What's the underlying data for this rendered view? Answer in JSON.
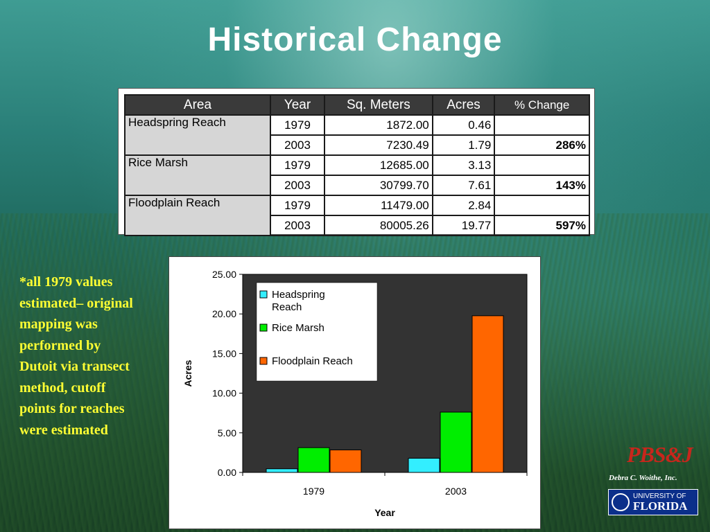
{
  "slide": {
    "title": "Historical Change",
    "note": "*all 1979 values estimated– original mapping was performed by Dutoit via transect method, cutoff points for reaches were estimated",
    "credit": "Debra C. Woithe, Inc.",
    "logos": {
      "pbsj": "PBS&J",
      "uf_line1": "UNIVERSITY OF",
      "uf_line2": "FLORIDA"
    }
  },
  "table": {
    "headers": [
      "Area",
      "Year",
      "Sq. Meters",
      "Acres",
      "% Change"
    ],
    "groups": [
      {
        "area": "Headspring Reach",
        "rows": [
          {
            "year": "1979",
            "sqm": "1872.00",
            "acres": "0.46",
            "pct": ""
          },
          {
            "year": "2003",
            "sqm": "7230.49",
            "acres": "1.79",
            "pct": "286%"
          }
        ]
      },
      {
        "area": "Rice Marsh",
        "rows": [
          {
            "year": "1979",
            "sqm": "12685.00",
            "acres": "3.13",
            "pct": ""
          },
          {
            "year": "2003",
            "sqm": "30799.70",
            "acres": "7.61",
            "pct": "143%"
          }
        ]
      },
      {
        "area": "Floodplain Reach",
        "rows": [
          {
            "year": "1979",
            "sqm": "11479.00",
            "acres": "2.84",
            "pct": ""
          },
          {
            "year": "2003",
            "sqm": "80005.26",
            "acres": "19.77",
            "pct": "597%"
          }
        ]
      }
    ]
  },
  "chart_data": {
    "type": "bar",
    "categories": [
      "1979",
      "2003"
    ],
    "series": [
      {
        "name": "Headspring Reach",
        "color": "#33eeff",
        "values": [
          0.46,
          1.79
        ]
      },
      {
        "name": "Rice Marsh",
        "color": "#00ee00",
        "values": [
          3.13,
          7.61
        ]
      },
      {
        "name": "Floodplain Reach",
        "color": "#ff6600",
        "values": [
          2.84,
          19.77
        ]
      }
    ],
    "xlabel": "Year",
    "ylabel": "Acres",
    "ylim": [
      0,
      25
    ],
    "yticks": [
      "0.00",
      "5.00",
      "10.00",
      "15.00",
      "20.00",
      "25.00"
    ],
    "ytick_values": [
      0,
      5,
      10,
      15,
      20,
      25
    ],
    "plot_background": "#333333",
    "grid": false,
    "legend": "top-left inside plot"
  }
}
